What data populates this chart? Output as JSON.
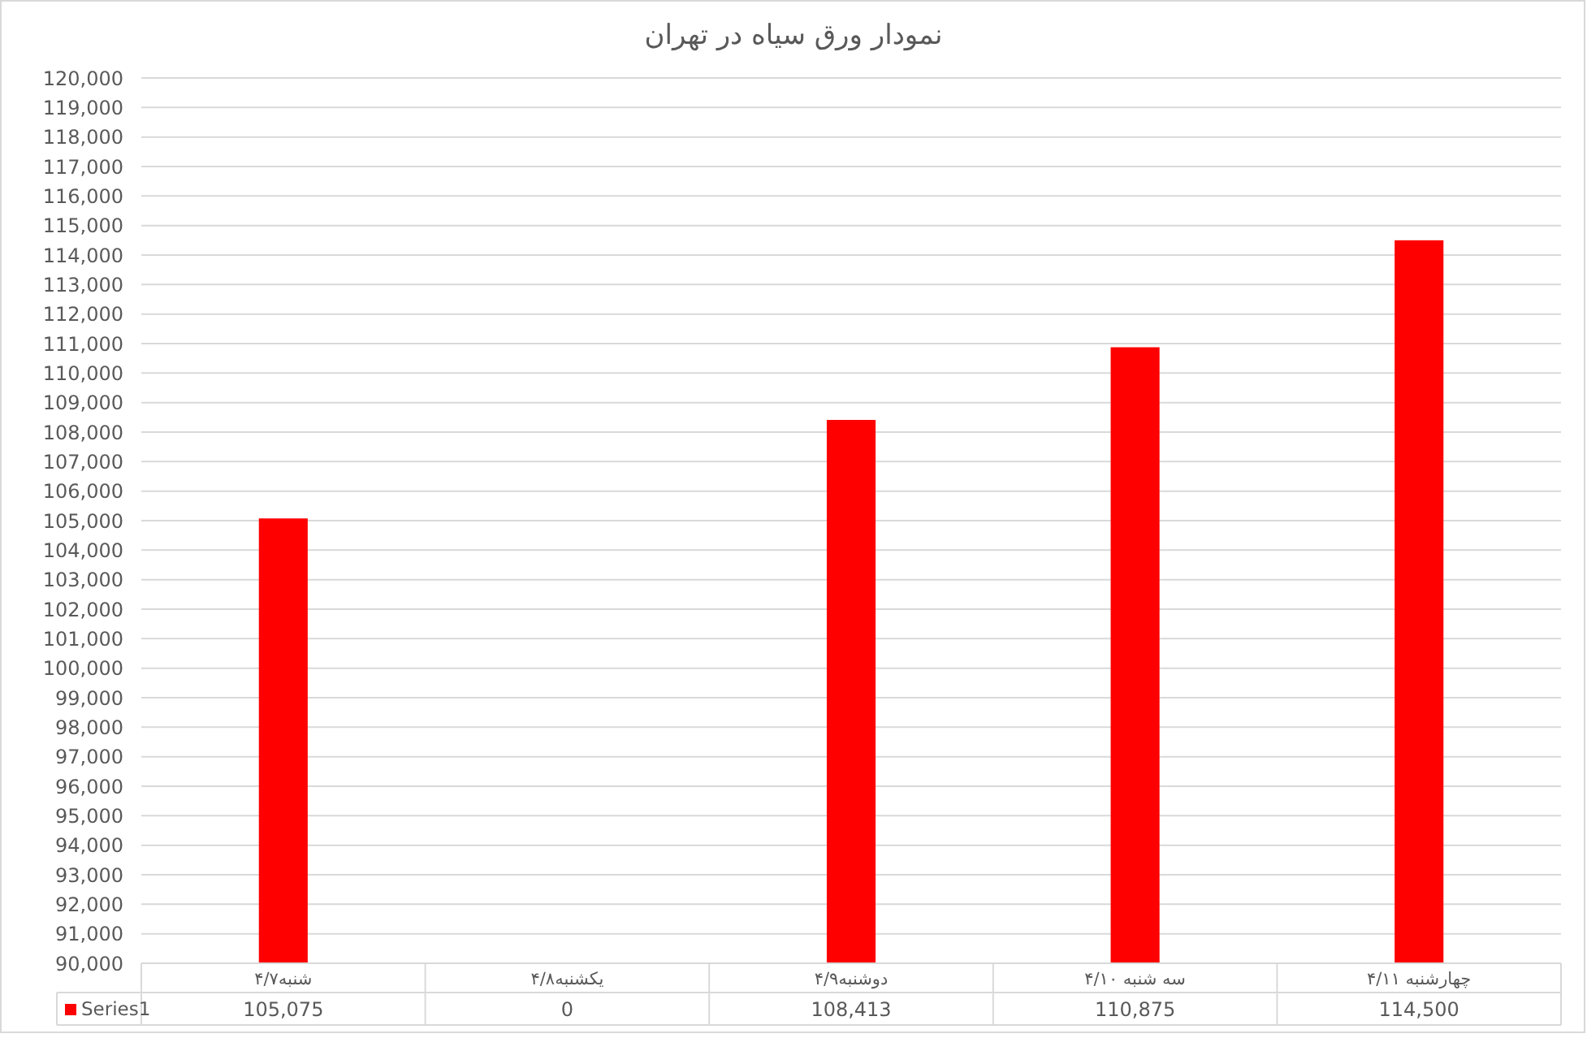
{
  "chart_data": {
    "type": "bar",
    "title": "نمودار ورق سیاه در تهران",
    "categories": [
      "شنبه۴/۷",
      "یکشنبه۴/۸",
      "دوشنبه۴/۹",
      "سه شنبه ۴/۱۰",
      "چهارشنبه ۴/۱۱"
    ],
    "series": [
      {
        "name": "Series1",
        "color": "#ff0000",
        "values": [
          105075,
          null,
          108413,
          110875,
          114500
        ],
        "value_labels": [
          "105,075",
          "0",
          "108,413",
          "110,875",
          "114,500"
        ]
      }
    ],
    "ylim": [
      90000,
      120000
    ],
    "yticks": [
      {
        "value": 90000,
        "label": "90,000"
      },
      {
        "value": 91000,
        "label": "91,000"
      },
      {
        "value": 92000,
        "label": "92,000"
      },
      {
        "value": 93000,
        "label": "93,000"
      },
      {
        "value": 94000,
        "label": "94,000"
      },
      {
        "value": 95000,
        "label": "95,000"
      },
      {
        "value": 96000,
        "label": "96,000"
      },
      {
        "value": 97000,
        "label": "97,000"
      },
      {
        "value": 98000,
        "label": "98,000"
      },
      {
        "value": 99000,
        "label": "99,000"
      },
      {
        "value": 100000,
        "label": "100,000"
      },
      {
        "value": 101000,
        "label": "101,000"
      },
      {
        "value": 102000,
        "label": "102,000"
      },
      {
        "value": 103000,
        "label": "103,000"
      },
      {
        "value": 104000,
        "label": "104,000"
      },
      {
        "value": 105000,
        "label": "105,000"
      },
      {
        "value": 106000,
        "label": "106,000"
      },
      {
        "value": 107000,
        "label": "107,000"
      },
      {
        "value": 108000,
        "label": "108,000"
      },
      {
        "value": 109000,
        "label": "109,000"
      },
      {
        "value": 110000,
        "label": "110,000"
      },
      {
        "value": 111000,
        "label": "111,000"
      },
      {
        "value": 112000,
        "label": "112,000"
      },
      {
        "value": 113000,
        "label": "113,000"
      },
      {
        "value": 114000,
        "label": "114,000"
      },
      {
        "value": 115000,
        "label": "115,000"
      },
      {
        "value": 116000,
        "label": "116,000"
      },
      {
        "value": 117000,
        "label": "117,000"
      },
      {
        "value": 118000,
        "label": "118,000"
      },
      {
        "value": 119000,
        "label": "119,000"
      },
      {
        "value": 120000,
        "label": "120,000"
      }
    ],
    "grid": "y",
    "legend": "bottom"
  }
}
